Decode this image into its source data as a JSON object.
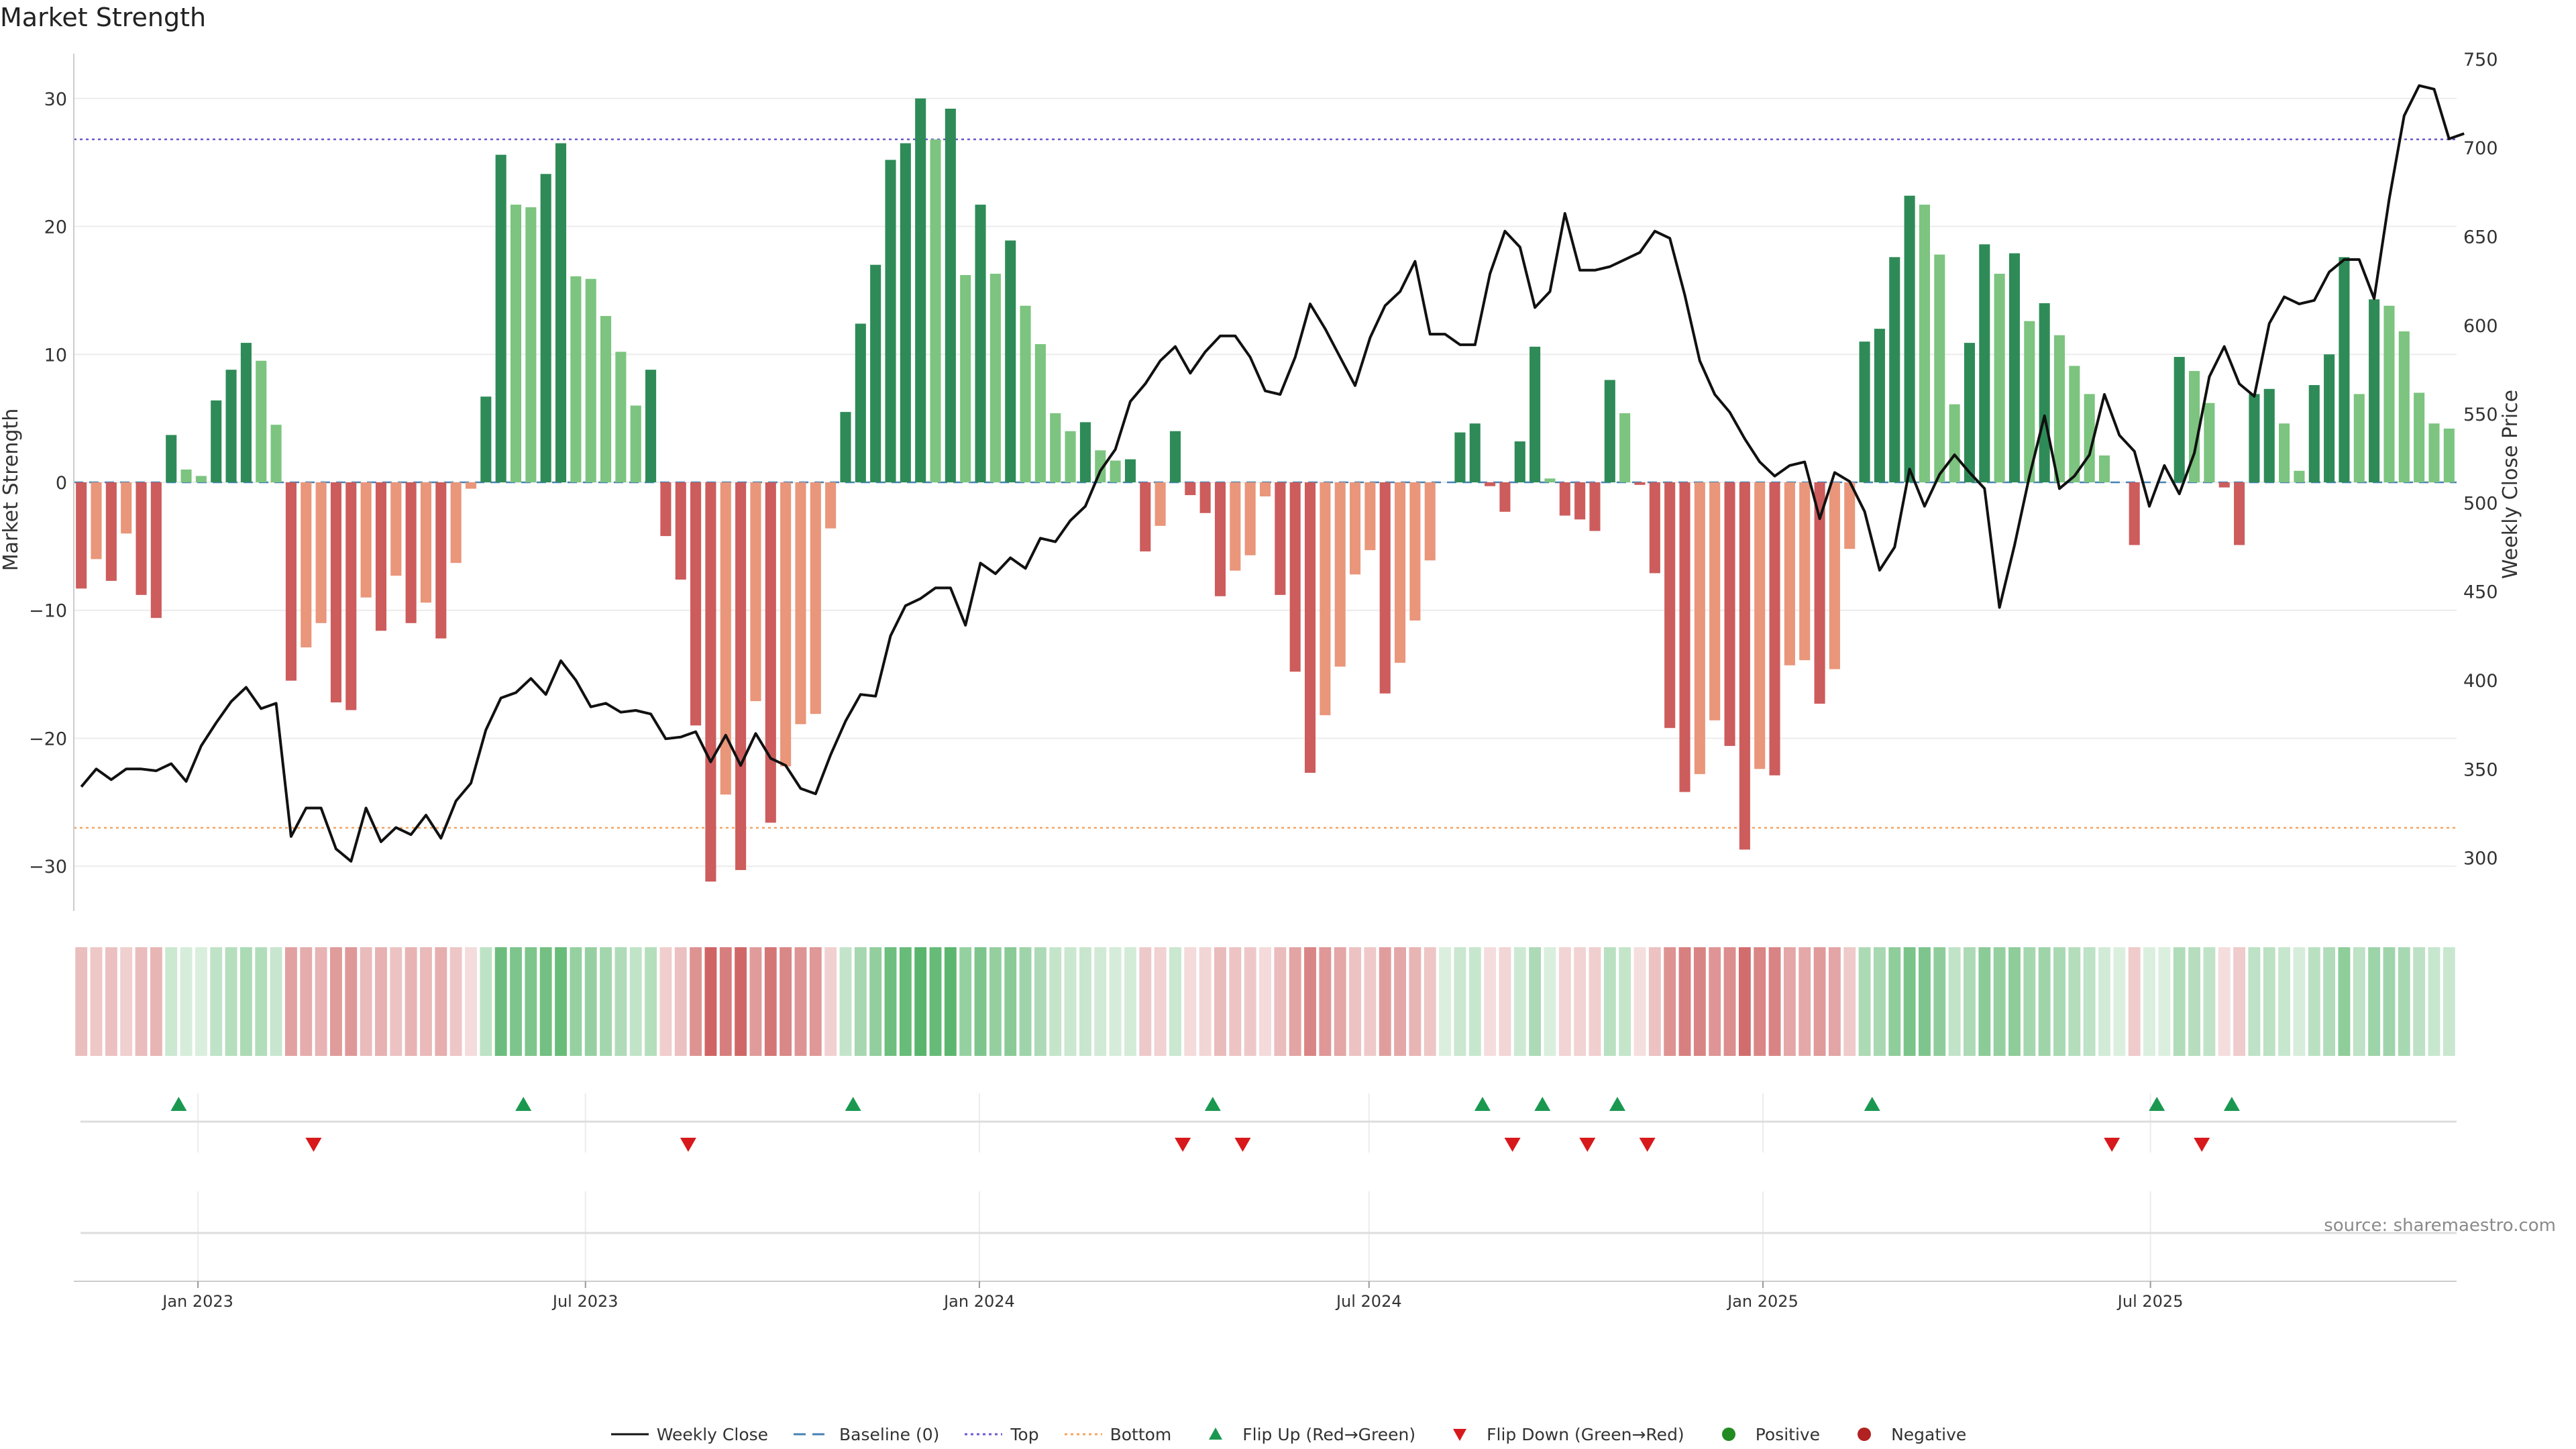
{
  "title": "Market Strength",
  "source": "source: sharemaestro.com",
  "colors": {
    "pos_strong": "#2e8b57",
    "pos_light": "#7cc47f",
    "neg_strong": "#cd5c5c",
    "neg_light": "#e9967a",
    "price": "#111111",
    "top": "#6a5acd",
    "bottom": "#f4a460",
    "baseline": "#4682b4",
    "flip_up": "#1a9850",
    "flip_down": "#d7191c"
  },
  "legend": [
    {
      "key": "weekly_close",
      "label": "Weekly Close"
    },
    {
      "key": "baseline",
      "label": "Baseline (0)"
    },
    {
      "key": "top",
      "label": "Top"
    },
    {
      "key": "bottom",
      "label": "Bottom"
    },
    {
      "key": "flip_up",
      "label": "Flip Up (Red→Green)"
    },
    {
      "key": "flip_down",
      "label": "Flip Down (Green→Red)"
    },
    {
      "key": "positive",
      "label": "Positive"
    },
    {
      "key": "negative",
      "label": "Negative"
    }
  ],
  "chart_data": {
    "type": "bar",
    "title": "Market Strength",
    "ylabel": "Market Strength",
    "y2label": "Weekly Close Price",
    "ylim": [
      -33.5,
      33.5
    ],
    "y2lim": [
      270,
      753
    ],
    "yticks": [
      30,
      20,
      10,
      0,
      -10,
      -20,
      -30
    ],
    "ytick_labels": [
      "30",
      "20",
      "10",
      "0",
      "−10",
      "−20",
      "−30"
    ],
    "y2ticks": [
      750,
      700,
      650,
      600,
      550,
      500,
      450,
      400,
      350,
      300
    ],
    "top_line": 26.8,
    "bottom_line": -27.0,
    "baseline": 0,
    "x_start": "2022-11-04",
    "x_end": "2025-11-14",
    "x_ticks": [
      {
        "date": "2023-01-01",
        "label": "Jan 2023"
      },
      {
        "date": "2023-07-01",
        "label": "Jul 2023"
      },
      {
        "date": "2024-01-01",
        "label": "Jan 2024"
      },
      {
        "date": "2024-07-01",
        "label": "Jul 2024"
      },
      {
        "date": "2025-01-01",
        "label": "Jan 2025"
      },
      {
        "date": "2025-07-01",
        "label": "Jul 2025"
      }
    ],
    "series": [
      {
        "name": "Market Strength",
        "values": [
          -8.3,
          -6.0,
          -7.7,
          -4.0,
          -8.8,
          -10.6,
          3.7,
          1.0,
          0.5,
          6.4,
          8.8,
          10.9,
          9.5,
          4.5,
          -15.5,
          -12.9,
          -11.0,
          -17.2,
          -17.8,
          -9.0,
          -11.6,
          -7.3,
          -11.0,
          -9.4,
          -12.2,
          -6.3,
          -0.5,
          6.7,
          25.6,
          21.7,
          21.5,
          24.1,
          26.5,
          16.1,
          15.9,
          13.0,
          10.2,
          6.0,
          8.8,
          -4.2,
          -7.6,
          -19.0,
          -31.2,
          -24.4,
          -30.3,
          -17.1,
          -26.6,
          -22.2,
          -18.9,
          -18.1,
          -3.6,
          5.5,
          12.4,
          17.0,
          25.2,
          26.5,
          30.0,
          26.8,
          29.2,
          16.2,
          21.7,
          16.3,
          18.9,
          13.8,
          10.8,
          5.4,
          4.0,
          4.7,
          2.5,
          1.7,
          1.8,
          -5.4,
          -3.4,
          4.0,
          -1.0,
          -2.4,
          -8.9,
          -6.9,
          -5.7,
          -1.1,
          -8.8,
          -14.8,
          -22.7,
          -18.2,
          -14.4,
          -7.2,
          -5.3,
          -16.5,
          -14.1,
          -10.8,
          -6.1,
          0.0,
          3.9,
          4.6,
          -0.3,
          -2.3,
          3.2,
          10.6,
          0.3,
          -2.6,
          -2.9,
          -3.8,
          8.0,
          5.4,
          -0.2,
          -7.1,
          -19.2,
          -24.2,
          -22.8,
          -18.6,
          -20.6,
          -28.7,
          -22.4,
          -22.9,
          -14.3,
          -13.9,
          -17.3,
          -14.6,
          -5.2,
          11.0,
          12.0,
          17.6,
          22.4,
          21.7,
          17.8,
          6.1,
          10.9,
          18.6,
          16.3,
          17.9,
          12.6,
          14.0,
          11.5,
          9.1,
          6.9,
          2.1,
          0.0,
          -4.9,
          0.0,
          0.0,
          9.8,
          8.7,
          6.2,
          -0.4,
          -4.9,
          6.9,
          7.3,
          4.6,
          0.9,
          7.6,
          10.0,
          17.6,
          6.9,
          14.3,
          13.8,
          11.8,
          7.0,
          4.6,
          4.2
        ]
      },
      {
        "name": "Weekly Close",
        "values": [
          340,
          350,
          344,
          350,
          350,
          349,
          353,
          343,
          363,
          376,
          388,
          396,
          384,
          387,
          312,
          328,
          328,
          305,
          298,
          328,
          309,
          317,
          313,
          324,
          311,
          332,
          342,
          372,
          390,
          393,
          401,
          392,
          411,
          400,
          385,
          387,
          382,
          383,
          381,
          367,
          368,
          371,
          354,
          369,
          352,
          370,
          356,
          352,
          339,
          336,
          358,
          377,
          392,
          391,
          425,
          442,
          446,
          452,
          452,
          431,
          466,
          460,
          469,
          463,
          480,
          478,
          490,
          498,
          518,
          530,
          557,
          567,
          580,
          588,
          573,
          585,
          594,
          594,
          582,
          563,
          561,
          582,
          612,
          598,
          582,
          566,
          593,
          611,
          619,
          636,
          595,
          595,
          589,
          589,
          629,
          653,
          644,
          610,
          619,
          663,
          631,
          631,
          633,
          637,
          641,
          653,
          649,
          617,
          580,
          561,
          551,
          536,
          523,
          515,
          521,
          523,
          491,
          517,
          512,
          495,
          462,
          475,
          519,
          498,
          516,
          527,
          517,
          508,
          441,
          476,
          515,
          549,
          508,
          515,
          527,
          561,
          538,
          529,
          498,
          521,
          505,
          528,
          571,
          588,
          567,
          560,
          601,
          616,
          612,
          614,
          630,
          637,
          637,
          615,
          671,
          718,
          735,
          733,
          705,
          708
        ]
      }
    ],
    "flip_up_dates": [
      "2022-12-23",
      "2023-06-02",
      "2023-11-03",
      "2024-04-19",
      "2024-08-23",
      "2024-09-20",
      "2024-10-25",
      "2025-02-21",
      "2025-07-04",
      "2025-08-08"
    ],
    "flip_down_dates": [
      "2023-02-24",
      "2023-08-18",
      "2024-04-05",
      "2024-05-03",
      "2024-09-06",
      "2024-10-11",
      "2024-11-08",
      "2025-06-13",
      "2025-07-25"
    ]
  }
}
